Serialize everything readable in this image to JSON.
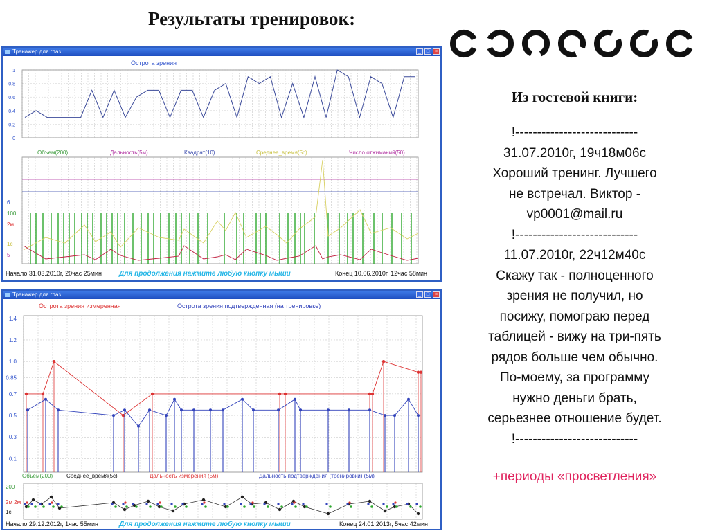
{
  "slide_title": "Результаты тренировок:",
  "guestbook": {
    "heading": "Из гостевой книги:",
    "lines": [
      "!----------------------------",
      "31.07.2010г, 19ч18м06с",
      "Хороший тренинг. Лучшего",
      "не встречал. Виктор -",
      "vp0001@mail.ru",
      "!----------------------------",
      "11.07.2010г, 22ч12м40с",
      "Скажу так - полноценного",
      "зрения не получил, но",
      "посижу, помограю перед",
      "таблицей - вижу на три-пять",
      "рядов больше чем обычно.",
      "По-моему, за программу",
      "нужно деньги брать,",
      "серьезнее отношение будет.",
      "!----------------------------"
    ],
    "footer": "+периоды «просветления»"
  },
  "landolt_rings": [
    "right",
    "left",
    "down",
    "down-right",
    "up-right",
    "up-right",
    "right"
  ],
  "window1": {
    "title": "Тренажер для глаз",
    "top_chart_title": "Острота зрения",
    "y_ticks": [
      "1",
      "0.8",
      "0.6",
      "0.4",
      "0.2",
      "0"
    ],
    "legend": [
      "Объем(200)",
      "Дальность(5м)",
      "Квадрат(10)",
      "Среднее_время(5с)",
      "Число отжиманий(50)"
    ],
    "left_labels": [
      "6",
      "100",
      "2м",
      "1с",
      "5"
    ],
    "start": "Начало  31.03.2010г, 20час 25мин",
    "prompt": "Для продолжения нажмите любую кнопку мыши",
    "end": "Конец  10.06.2010г, 12час 58мин"
  },
  "window2": {
    "title": "Тренажер для глаз",
    "legend_top": [
      "Острота зрения измеренная",
      "Острота зрения подтвержденная (на тренировке)"
    ],
    "y_ticks": [
      "1.4",
      "1.2",
      "1.0",
      "0.85",
      "0.7",
      "0.5",
      "0.3",
      "0.1"
    ],
    "legend_bottom": [
      "Объем(200)",
      "Среднее_время(5с)",
      "Дальность измерения (5м)",
      "Дальность подтверждения (тренировки) (5м)"
    ],
    "left_labels": [
      "200",
      "2м 2м",
      "1с"
    ],
    "start": "Начало  29.12.2012г,  1час 55мин",
    "prompt": "Для продолжения нажмите любую кнопку мыши",
    "end": "Конец  24.01.2013г,  5час 42мин"
  },
  "chart_data": [
    {
      "type": "line",
      "title": "Острота зрения",
      "ylim": [
        0,
        1
      ],
      "series": [
        {
          "values": [
            0.3,
            0.4,
            0.3,
            0.3,
            0.3,
            0.3,
            0.7,
            0.3,
            0.7,
            0.3,
            0.6,
            0.7,
            0.7,
            0.3,
            0.7,
            0.7,
            0.3,
            0.7,
            0.8,
            0.3,
            0.9,
            0.8,
            0.9,
            0.3,
            0.8,
            0.3,
            0.9,
            0.3,
            1.0,
            0.9,
            0.3,
            0.9,
            0.8,
            0.3,
            0.9,
            0.9
          ]
        }
      ]
    },
    {
      "type": "line",
      "series": [
        {
          "name": "Острота зрения измеренная",
          "values": [
            0.7,
            0.7,
            1.0,
            0.5,
            0.7,
            0.7,
            0.7,
            0.7,
            0.7,
            1.0,
            0.9,
            0.9
          ]
        },
        {
          "name": "Острота зрения подтвержденная (на тренировке)",
          "values": [
            0.55,
            0.65,
            0.55,
            0.4,
            0.5,
            0.55,
            0.55,
            0.55,
            0.55,
            0.65,
            0.55,
            0.55,
            0.55,
            0.65,
            0.55,
            0.5,
            0.65
          ]
        }
      ],
      "ylim": [
        0,
        1.45
      ]
    }
  ]
}
